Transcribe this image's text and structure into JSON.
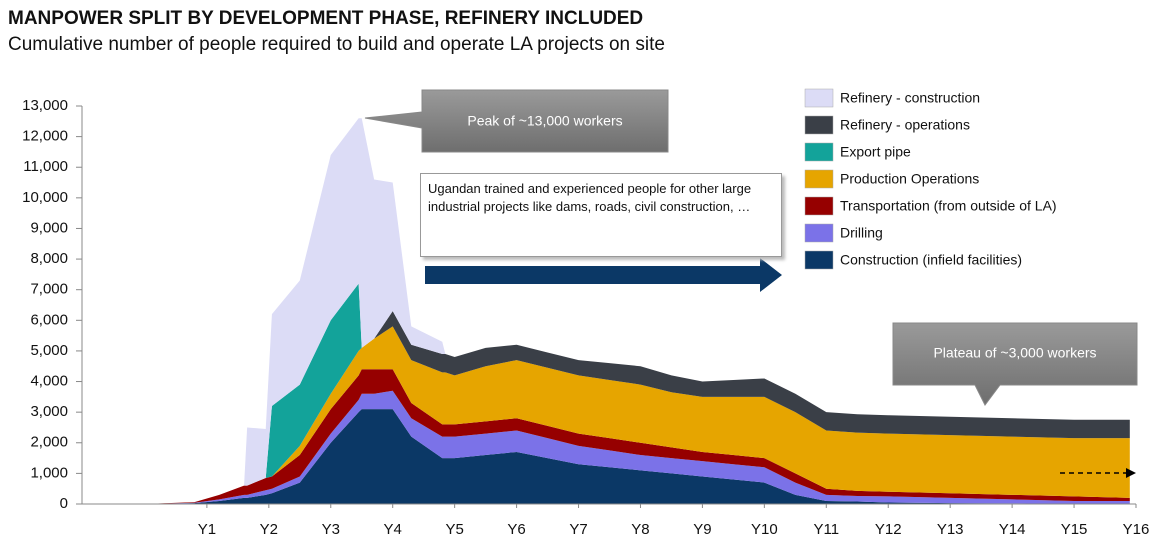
{
  "chart_data": {
    "type": "stacked-area",
    "title": "MANPOWER SPLIT BY DEVELOPMENT PHASE, REFINERY INCLUDED",
    "subtitle": "Cumulative number of people required to build and operate LA projects on site",
    "x": [
      0,
      0.8,
      1.2,
      1.6,
      1.65,
      1.95,
      2.05,
      2.5,
      3,
      3.45,
      3.5,
      3.7,
      4,
      4.3,
      4.8,
      4.85,
      5,
      5.5,
      6,
      6.5,
      7,
      7.5,
      8,
      8.5,
      9,
      9.5,
      10,
      10.5,
      11,
      11.5,
      12,
      13,
      14,
      15,
      15.9
    ],
    "xlim": [
      -1,
      16
    ],
    "xticks": [
      {
        "value": 1,
        "label": "Y1"
      },
      {
        "value": 2,
        "label": "Y2"
      },
      {
        "value": 3,
        "label": "Y3"
      },
      {
        "value": 4,
        "label": "Y4"
      },
      {
        "value": 5,
        "label": "Y5"
      },
      {
        "value": 6,
        "label": "Y6"
      },
      {
        "value": 7,
        "label": "Y7"
      },
      {
        "value": 8,
        "label": "Y8"
      },
      {
        "value": 9,
        "label": "Y9"
      },
      {
        "value": 10,
        "label": "Y10"
      },
      {
        "value": 11,
        "label": "Y11"
      },
      {
        "value": 12,
        "label": "Y12"
      },
      {
        "value": 13,
        "label": "Y13"
      },
      {
        "value": 14,
        "label": "Y14"
      },
      {
        "value": 15,
        "label": "Y15"
      },
      {
        "value": 16,
        "label": "Y16"
      }
    ],
    "ylim": [
      0,
      13000
    ],
    "yticks": [
      0,
      {
        "value": 1000,
        "label": "1,000"
      },
      {
        "value": 2000,
        "label": "2,000"
      },
      {
        "value": 3000,
        "label": "3,000"
      },
      {
        "value": 4000,
        "label": "4,000"
      },
      {
        "value": 5000,
        "label": "5,000"
      },
      {
        "value": 6000,
        "label": "6,000"
      },
      {
        "value": 7000,
        "label": "7,000"
      },
      {
        "value": 8000,
        "label": "8,000"
      },
      {
        "value": 9000,
        "label": "9,000"
      },
      {
        "value": 10000,
        "label": "10,000"
      },
      {
        "value": 11000,
        "label": "11,000"
      },
      {
        "value": 12000,
        "label": "12,000"
      },
      {
        "value": 13000,
        "label": "13,000"
      }
    ],
    "series": [
      {
        "name": "Construction (infield facilities)",
        "color": "#0b3866",
        "values": [
          0,
          30,
          100,
          200,
          200,
          300,
          350,
          700,
          2000,
          3000,
          3100,
          3100,
          3100,
          2200,
          1500,
          1500,
          1500,
          1600,
          1700,
          1500,
          1300,
          1200,
          1100,
          1000,
          900,
          800,
          700,
          300,
          100,
          80,
          50,
          30,
          20,
          0,
          0
        ]
      },
      {
        "name": "Drilling",
        "color": "#7b72e8",
        "values": [
          0,
          10,
          50,
          100,
          100,
          150,
          150,
          200,
          300,
          400,
          500,
          500,
          600,
          600,
          700,
          700,
          700,
          700,
          700,
          650,
          600,
          550,
          500,
          500,
          500,
          500,
          500,
          400,
          200,
          180,
          200,
          170,
          130,
          100,
          100
        ]
      },
      {
        "name": "Transportation (from outside of LA)",
        "color": "#960000",
        "values": [
          0,
          20,
          150,
          300,
          300,
          400,
          400,
          700,
          800,
          800,
          800,
          800,
          700,
          500,
          400,
          400,
          400,
          400,
          400,
          400,
          400,
          400,
          400,
          350,
          300,
          300,
          300,
          300,
          200,
          170,
          150,
          150,
          150,
          150,
          100
        ]
      },
      {
        "name": "Production Operations",
        "color": "#e6a500",
        "values": [
          0,
          0,
          0,
          0,
          0,
          0,
          0,
          300,
          500,
          800,
          700,
          1000,
          1400,
          1400,
          1700,
          1700,
          1600,
          1800,
          1900,
          1900,
          1900,
          1900,
          1900,
          1800,
          1800,
          1900,
          2000,
          2000,
          1900,
          1900,
          1900,
          1900,
          1900,
          1900,
          1950
        ]
      },
      {
        "name": "Export pipe",
        "color": "#13a39a",
        "values": [
          0,
          0,
          0,
          0,
          0,
          0,
          2300,
          2000,
          2400,
          2200,
          0,
          0,
          0,
          0,
          0,
          0,
          0,
          0,
          0,
          0,
          0,
          0,
          0,
          0,
          0,
          0,
          0,
          0,
          0,
          0,
          0,
          0,
          0,
          0,
          0
        ]
      },
      {
        "name": "Refinery - operations",
        "color": "#3a3f47",
        "values": [
          0,
          0,
          0,
          0,
          0,
          0,
          0,
          0,
          0,
          0,
          0,
          0,
          500,
          500,
          600,
          600,
          600,
          600,
          500,
          500,
          500,
          550,
          600,
          550,
          500,
          550,
          600,
          600,
          600,
          600,
          600,
          600,
          600,
          600,
          600
        ]
      },
      {
        "name": "Refinery - construction",
        "color": "#dcdcf6",
        "values": [
          0,
          0,
          0,
          0,
          1900,
          1600,
          3000,
          3400,
          5400,
          5400,
          7500,
          5200,
          4200,
          600,
          400,
          0,
          0,
          0,
          0,
          0,
          0,
          0,
          0,
          0,
          0,
          0,
          0,
          0,
          0,
          0,
          0,
          0,
          0,
          0,
          0
        ]
      }
    ],
    "annotations": [
      "Peak of ~13,000 workers",
      "Ugandan trained and experienced people for other large industrial projects like dams, roads, civil construction, …",
      "Plateau of ~3,000 workers"
    ]
  }
}
